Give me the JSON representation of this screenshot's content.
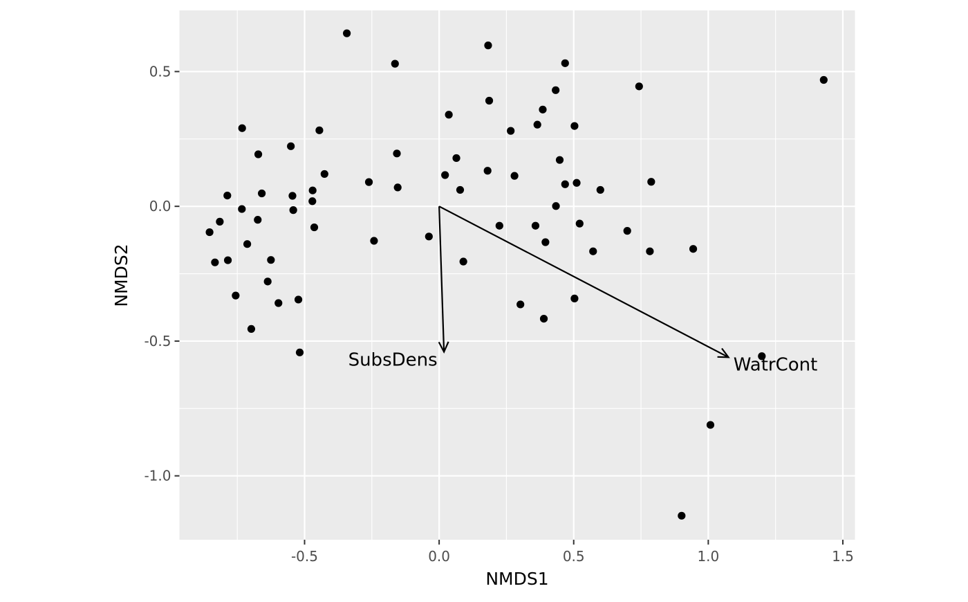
{
  "chart_data": {
    "type": "scatter",
    "title": "",
    "xlabel": "NMDS1",
    "ylabel": "NMDS2",
    "xlim": [
      -0.965,
      1.545
    ],
    "ylim": [
      -1.237,
      0.727
    ],
    "x_ticks": [
      -0.5,
      0.0,
      0.5,
      1.0,
      1.5
    ],
    "x_tick_labels": [
      "-0.5",
      "0.0",
      "0.5",
      "1.0",
      "1.5"
    ],
    "y_ticks": [
      -1.0,
      -0.5,
      0.0,
      0.5
    ],
    "y_tick_labels": [
      "-1.0",
      "-0.5",
      "0.0",
      "0.5"
    ],
    "grid": true,
    "legend": "none",
    "colors": {
      "panel_background": "#EBEBEB",
      "grid_major": "#FFFFFF",
      "points": "#000000",
      "arrows": "#000000",
      "tick_labels": "#4D4D4D",
      "axis_titles": "#000000"
    },
    "series": [
      {
        "points": [
          [
            -0.343,
            0.642
          ],
          [
            -0.164,
            0.529
          ],
          [
            0.182,
            0.597
          ],
          [
            0.468,
            0.531
          ],
          [
            1.429,
            0.469
          ],
          [
            0.743,
            0.445
          ],
          [
            0.433,
            0.431
          ],
          [
            0.186,
            0.392
          ],
          [
            0.385,
            0.359
          ],
          [
            0.036,
            0.34
          ],
          [
            0.365,
            0.303
          ],
          [
            0.503,
            0.298
          ],
          [
            -0.732,
            0.29
          ],
          [
            -0.445,
            0.282
          ],
          [
            0.266,
            0.28
          ],
          [
            -0.551,
            0.223
          ],
          [
            -0.157,
            0.196
          ],
          [
            -0.672,
            0.193
          ],
          [
            0.064,
            0.179
          ],
          [
            0.448,
            0.172
          ],
          [
            0.18,
            0.132
          ],
          [
            -0.426,
            0.12
          ],
          [
            0.022,
            0.116
          ],
          [
            0.28,
            0.113
          ],
          [
            -0.261,
            0.09
          ],
          [
            0.788,
            0.091
          ],
          [
            0.511,
            0.087
          ],
          [
            0.468,
            0.082
          ],
          [
            -0.154,
            0.07
          ],
          [
            0.078,
            0.061
          ],
          [
            0.599,
            0.061
          ],
          [
            -0.47,
            0.059
          ],
          [
            -0.659,
            0.048
          ],
          [
            -0.787,
            0.04
          ],
          [
            -0.545,
            0.039
          ],
          [
            -0.471,
            0.019
          ],
          [
            0.434,
            0.001
          ],
          [
            -0.733,
            -0.01
          ],
          [
            -0.542,
            -0.014
          ],
          [
            -0.674,
            -0.05
          ],
          [
            -0.815,
            -0.057
          ],
          [
            0.522,
            -0.064
          ],
          [
            0.224,
            -0.072
          ],
          [
            0.358,
            -0.072
          ],
          [
            -0.464,
            -0.078
          ],
          [
            0.699,
            -0.091
          ],
          [
            -0.853,
            -0.096
          ],
          [
            -0.038,
            -0.112
          ],
          [
            -0.242,
            -0.128
          ],
          [
            0.395,
            -0.133
          ],
          [
            -0.713,
            -0.14
          ],
          [
            0.944,
            -0.158
          ],
          [
            0.572,
            -0.167
          ],
          [
            0.783,
            -0.167
          ],
          [
            -0.785,
            -0.2
          ],
          [
            -0.625,
            -0.199
          ],
          [
            -0.833,
            -0.208
          ],
          [
            0.09,
            -0.205
          ],
          [
            -0.637,
            -0.279
          ],
          [
            -0.756,
            -0.331
          ],
          [
            0.503,
            -0.342
          ],
          [
            -0.523,
            -0.346
          ],
          [
            -0.597,
            -0.359
          ],
          [
            0.302,
            -0.364
          ],
          [
            0.389,
            -0.417
          ],
          [
            -0.698,
            -0.455
          ],
          [
            -0.518,
            -0.542
          ],
          [
            1.199,
            -0.556
          ],
          [
            1.008,
            -0.811
          ],
          [
            0.901,
            -1.148
          ]
        ]
      }
    ],
    "vectors": [
      {
        "label": "SubsDens",
        "x": 0.018,
        "y": -0.54
      },
      {
        "label": "WatrCont",
        "x": 1.075,
        "y": -0.56
      }
    ]
  }
}
